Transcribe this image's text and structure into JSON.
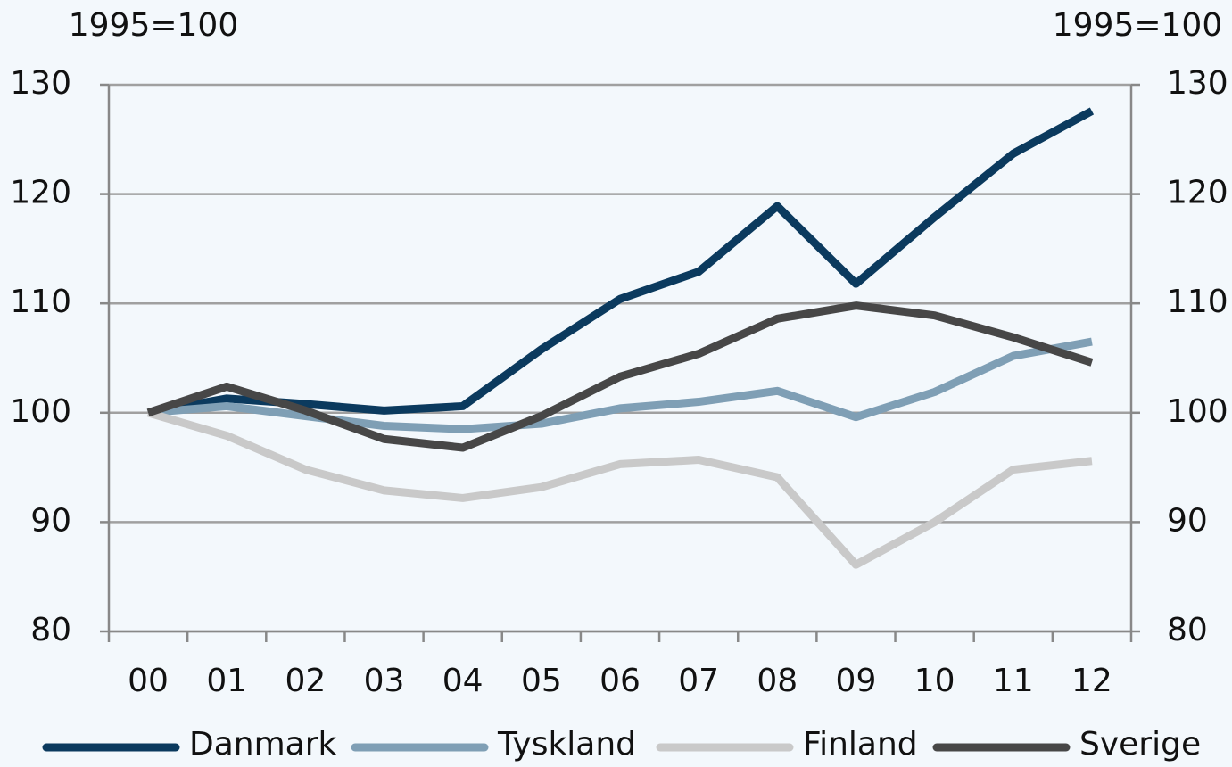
{
  "chart_data": {
    "type": "line",
    "y_label": "1995=100",
    "y2_label": "1995=100",
    "categories": [
      "00",
      "01",
      "02",
      "03",
      "04",
      "05",
      "06",
      "07",
      "08",
      "09",
      "10",
      "11",
      "12"
    ],
    "series": [
      {
        "name": "Danmark",
        "color": "#0b3a5e",
        "values": [
          100,
          101.3,
          100.8,
          100.2,
          100.6,
          105.8,
          110.4,
          112.9,
          118.9,
          111.8,
          117.9,
          123.7,
          127.6
        ]
      },
      {
        "name": "Tyskland",
        "color": "#7f9fb5",
        "values": [
          100,
          100.6,
          99.7,
          98.8,
          98.5,
          99.0,
          100.4,
          101.0,
          102.0,
          99.6,
          101.9,
          105.2,
          106.5
        ]
      },
      {
        "name": "Finland",
        "color": "#c9c9c9",
        "values": [
          100,
          97.9,
          94.8,
          92.9,
          92.2,
          93.2,
          95.3,
          95.7,
          94.1,
          86.1,
          90.0,
          94.8,
          95.6
        ]
      },
      {
        "name": "Sverige",
        "color": "#474747",
        "values": [
          100,
          102.4,
          100.2,
          97.6,
          96.8,
          99.7,
          103.3,
          105.4,
          108.6,
          109.8,
          108.9,
          106.9,
          104.6
        ]
      }
    ],
    "ylim": [
      80,
      130
    ],
    "yticks": [
      80,
      90,
      100,
      110,
      120,
      130
    ],
    "y2lim": [
      80,
      130
    ],
    "y2ticks": [
      80,
      90,
      100,
      110,
      120,
      130
    ],
    "grid": true,
    "legend": "bottom"
  }
}
